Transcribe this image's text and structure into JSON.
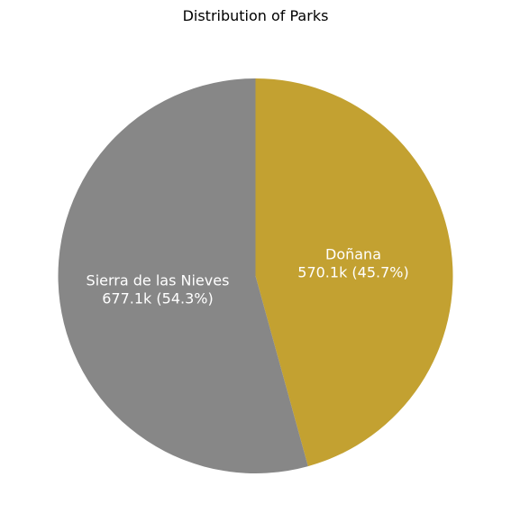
{
  "chart_data": {
    "type": "pie",
    "title": "Distribution of Parks",
    "slices": [
      {
        "name": "Doñana",
        "value": 570.1,
        "value_label": "570.1k (45.7%)",
        "percent": 45.7,
        "color": "#c3a131"
      },
      {
        "name": "Sierra de las Nieves",
        "value": 677.1,
        "value_label": "677.1k (54.3%)",
        "percent": 54.3,
        "color": "#878787"
      }
    ],
    "start_angle": "top",
    "direction": "clockwise",
    "legend": "none"
  }
}
